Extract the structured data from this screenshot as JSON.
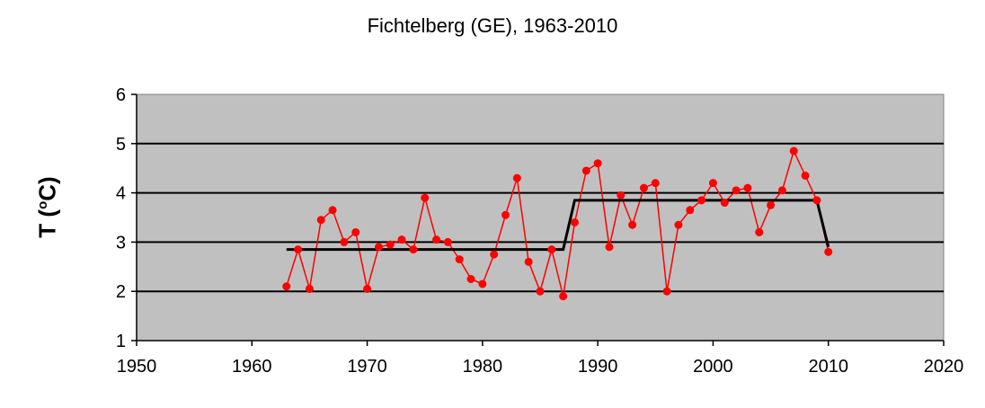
{
  "chart_data": {
    "type": "line",
    "title": "Fichtelberg (GE), 1963-2010",
    "ylabel_main": "T (",
    "ylabel_deg": "o",
    "ylabel_unit": "C)",
    "xlabel": "",
    "xlim": [
      1950,
      2020
    ],
    "ylim": [
      1,
      6
    ],
    "xticks": [
      "1950",
      "1960",
      "1970",
      "1980",
      "1990",
      "2000",
      "2010",
      "2020"
    ],
    "yticks": [
      "1",
      "2",
      "3",
      "4",
      "5",
      "6"
    ],
    "grid": "horizontal",
    "plot_background": "#c0c0c0",
    "series": [
      {
        "color": "#ff0000",
        "x": [
          1963,
          1964,
          1965,
          1966,
          1967,
          1968,
          1969,
          1970,
          1971,
          1972,
          1973,
          1974,
          1975,
          1976,
          1977,
          1978,
          1979,
          1980,
          1981,
          1982,
          1983,
          1984,
          1985,
          1986,
          1987,
          1988,
          1989,
          1990,
          1991,
          1992,
          1993,
          1994,
          1995,
          1996,
          1997,
          1998,
          1999,
          2000,
          2001,
          2002,
          2003,
          2004,
          2005,
          2006,
          2007,
          2008,
          2009,
          2010
        ],
        "y": [
          2.1,
          2.85,
          2.05,
          3.45,
          3.65,
          3.0,
          3.2,
          2.05,
          2.9,
          2.95,
          3.05,
          2.85,
          3.9,
          3.05,
          3.0,
          2.65,
          2.25,
          2.15,
          2.75,
          3.55,
          4.3,
          2.6,
          2.0,
          2.85,
          1.9,
          3.4,
          4.45,
          4.6,
          2.9,
          3.95,
          3.35,
          4.1,
          4.2,
          2.0,
          3.35,
          3.65,
          3.85,
          4.2,
          3.8,
          4.05,
          4.1,
          3.2,
          3.75,
          4.05,
          4.85,
          4.35,
          3.85,
          2.8
        ]
      },
      {
        "color": "#000000",
        "x": [
          1963,
          1987,
          1988,
          2009,
          2010
        ],
        "y": [
          2.85,
          2.85,
          3.85,
          3.85,
          2.9
        ]
      }
    ]
  }
}
